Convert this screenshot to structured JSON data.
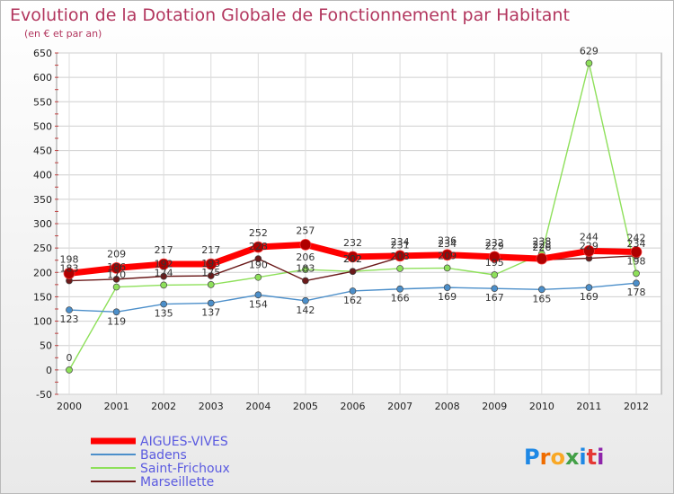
{
  "chart_data": {
    "type": "line",
    "title": "Evolution de la Dotation Globale de Fonctionnement par Habitant",
    "subtitle": "(en € et par an)",
    "xlabel": "",
    "ylabel": "",
    "ylim": [
      -50,
      650
    ],
    "yticks": [
      -50,
      0,
      50,
      100,
      150,
      200,
      250,
      300,
      350,
      400,
      450,
      500,
      550,
      600,
      650
    ],
    "categories": [
      "2000",
      "2001",
      "2002",
      "2003",
      "2004",
      "2005",
      "2006",
      "2007",
      "2008",
      "2009",
      "2010",
      "2011",
      "2012"
    ],
    "grid": true,
    "legend_position": "bottom-left",
    "series": [
      {
        "name": "AIGUES-VIVES",
        "color": "#ff0000",
        "values": [
          198,
          209,
          217,
          217,
          252,
          257,
          232,
          234,
          236,
          232,
          228,
          244,
          242
        ]
      },
      {
        "name": "Badens",
        "color": "#4c8fca",
        "values": [
          123,
          119,
          135,
          137,
          154,
          142,
          162,
          166,
          169,
          167,
          165,
          169,
          178
        ]
      },
      {
        "name": "Saint-Frichoux",
        "color": "#8ee05a",
        "values": [
          0,
          170,
          174,
          175,
          190,
          206,
          202,
          208,
          209,
          195,
          238,
          629,
          198
        ]
      },
      {
        "name": "Marseillette",
        "color": "#6b1a1a",
        "values": [
          183,
          186,
          192,
          193,
          228,
          183,
          202,
          231,
          234,
          229,
          226,
          229,
          234
        ]
      }
    ]
  },
  "brand": {
    "text": "Proxiti",
    "letters": [
      "P",
      "r",
      "o",
      "x",
      "i",
      "t",
      "i"
    ],
    "colors": [
      "#1e88e5",
      "#ef6c00",
      "#f9a825",
      "#43a047",
      "#1e88e5",
      "#e53935",
      "#8e24aa"
    ]
  }
}
